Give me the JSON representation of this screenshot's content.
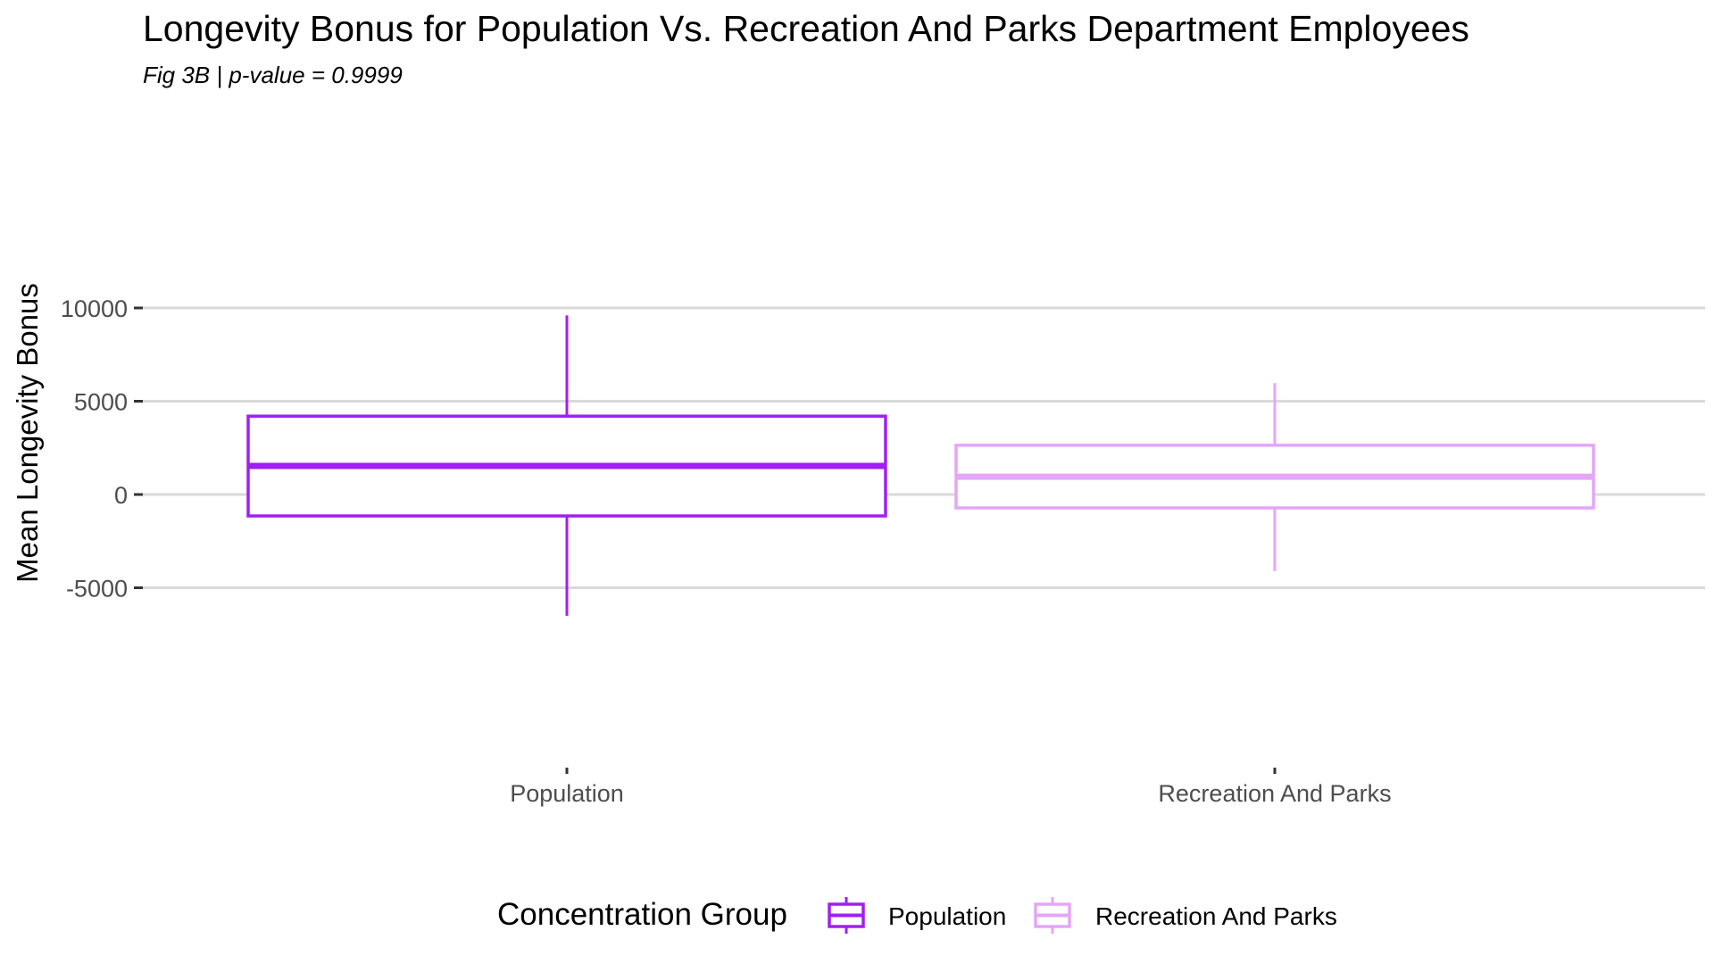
{
  "chart_data": {
    "type": "box",
    "title": "Longevity Bonus for Population Vs. Recreation And Parks Department Employees",
    "subtitle": "Fig 3B | p-value =  0.9999",
    "xlabel": "",
    "ylabel": "Mean Longevity Bonus",
    "ylim": [
      -6900,
      10500
    ],
    "yticks": [
      10000,
      5000,
      0,
      -5000
    ],
    "ytick_labels": [
      "10000",
      "5000",
      "0",
      "-5000"
    ],
    "grid": "horizontal major",
    "legend": {
      "title": "Concentration Group",
      "placement": "bottom",
      "entries": [
        "Population",
        "Recreation And Parks"
      ]
    },
    "categories": [
      "Population",
      "Recreation And Parks"
    ],
    "series": [
      {
        "name": "Population",
        "color": "#A020F0",
        "min": -6500,
        "q1": -1150,
        "median": 1530,
        "q3": 4200,
        "max": 9600
      },
      {
        "name": "Recreation And Parks",
        "color": "#E4A6F8",
        "min": -4100,
        "q1": -720,
        "median": 950,
        "q3": 2640,
        "max": 5970
      }
    ]
  }
}
